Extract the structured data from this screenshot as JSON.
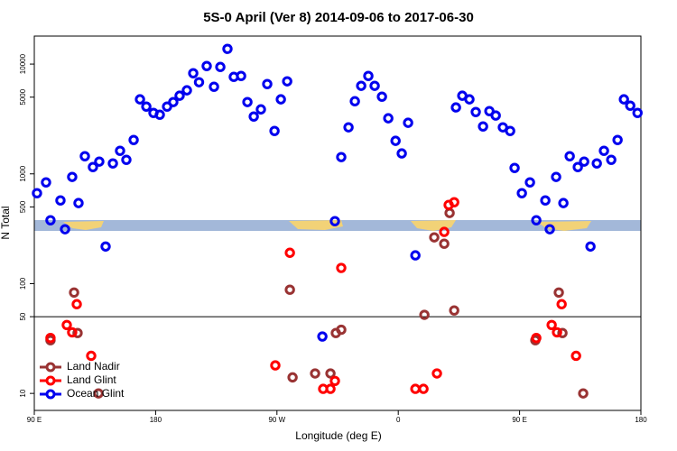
{
  "chart_data": {
    "type": "scatter",
    "title": "5S-0 April (Ver 8)   2014-09-06 to 2017-06-30",
    "x_label": "Longitude (deg E)",
    "y_label": "N Total",
    "log_y": true,
    "xlim": [
      90,
      540
    ],
    "ylim": [
      7,
      18000
    ],
    "xticks": [
      {
        "value": 90,
        "label": "90 E"
      },
      180,
      {
        "value": 270,
        "label": "90 W"
      },
      {
        "value": 360,
        "label": "0"
      },
      {
        "value": 450,
        "label": "90 E"
      },
      {
        "value": 540,
        "label": "180"
      }
    ],
    "yticks": [
      10,
      50,
      100,
      500,
      1000,
      5000,
      10000
    ],
    "hline": 50,
    "legend": "bottom-left",
    "series": [
      {
        "name": "Land Nadir",
        "color": "#993333",
        "x": [
          102,
          119.5,
          122.1,
          137.6,
          279.6,
          281.6,
          298.3,
          309.7,
          313.7,
          317.7,
          379.4,
          386.7,
          394.1,
          398.1,
          401.5,
          461.7,
          479.1,
          481.8,
          497.2
        ],
        "values": [
          30.5,
          83,
          35.5,
          10,
          88,
          14,
          15.2,
          15.2,
          35.5,
          38,
          52,
          264,
          231,
          440,
          57,
          30.5,
          83,
          35.5,
          10
        ]
      },
      {
        "name": "Land Glint",
        "color": "#ff0000",
        "x": [
          102,
          114.1,
          118.1,
          121.5,
          132.2,
          268.8,
          279.6,
          304.3,
          309.7,
          313,
          317.7,
          372.7,
          378.7,
          388.7,
          394.1,
          397.4,
          401.5,
          462.4,
          473.8,
          477.8,
          481.2,
          491.9
        ],
        "values": [
          32,
          42,
          36,
          65,
          22,
          18,
          191,
          11,
          11,
          13,
          139,
          11,
          11,
          15.2,
          296,
          521,
          552,
          32,
          42,
          36,
          65,
          22
        ]
      },
      {
        "name": "Ocean Glint",
        "color": "#0000ee",
        "x": [
          92,
          98.7,
          102,
          109.4,
          112.8,
          118.1,
          122.8,
          127.5,
          133.5,
          138.2,
          142.9,
          148.3,
          153.6,
          158.3,
          163.7,
          168.4,
          173.1,
          178.4,
          183.1,
          188.5,
          193.1,
          197.8,
          203.2,
          207.9,
          212.2,
          217.9,
          223.3,
          228,
          233.3,
          238,
          243.4,
          248.1,
          252.8,
          258.1,
          262.8,
          268.2,
          272.9,
          277.6,
          303.7,
          313,
          317.7,
          323.1,
          327.8,
          332.5,
          337.8,
          342.5,
          347.9,
          352.6,
          358,
          362.6,
          367.3,
          372.7,
          402.8,
          407.5,
          412.8,
          417.5,
          422.9,
          427.6,
          432.3,
          437.6,
          443,
          446.3,
          451.7,
          457.7,
          462.4,
          469.1,
          472.4,
          477.1,
          482.5,
          487.2,
          493.2,
          497.9,
          502.6,
          507.3,
          512.6,
          518,
          522.7,
          527.4,
          532.1,
          537.5
        ],
        "values": [
          667,
          837,
          378,
          573,
          313,
          938,
          542,
          1449,
          1154,
          1294,
          218,
          1245,
          1623,
          1343,
          2037,
          4775,
          4102,
          3591,
          3459,
          4102,
          4510,
          5150,
          5770,
          8260,
          6840,
          9610,
          6220,
          9420,
          13770,
          7650,
          7800,
          4510,
          3330,
          3870,
          6580,
          2460,
          4775,
          6970,
          33,
          371,
          1422,
          2655,
          4590,
          6340,
          7800,
          6340,
          5050,
          3210,
          2000,
          1535,
          2920,
          181,
          4030,
          5150,
          4775,
          3660,
          2705,
          3730,
          3400,
          2655,
          2460,
          1133,
          667,
          837,
          378,
          573,
          313,
          938,
          542,
          1449,
          1154,
          1294,
          218,
          1245,
          1623,
          1343,
          2037,
          4775,
          4180,
          3591
        ]
      }
    ]
  }
}
